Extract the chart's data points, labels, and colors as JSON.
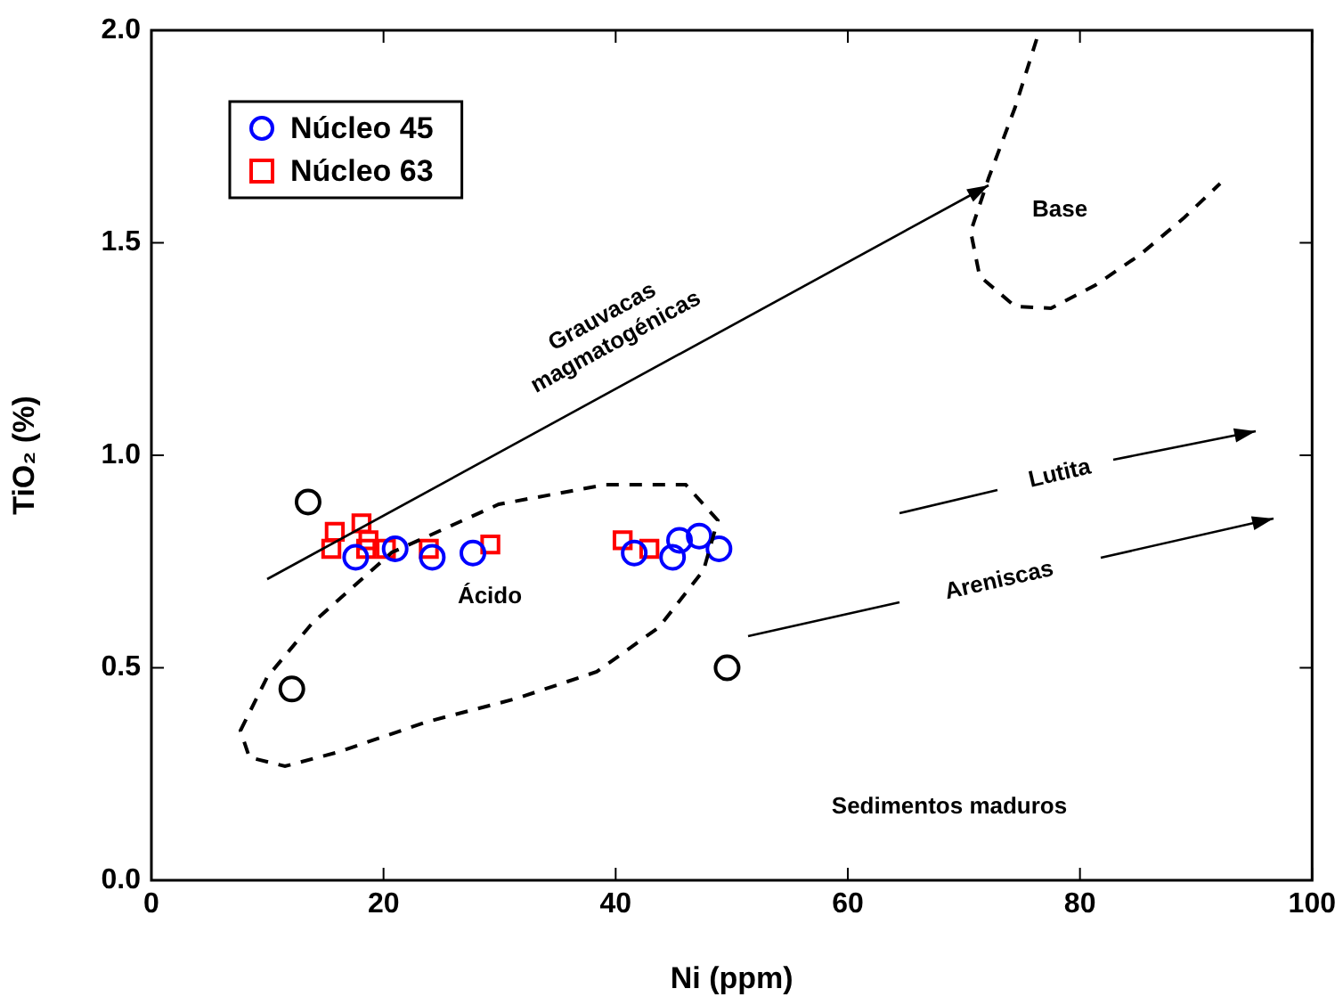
{
  "chart_data": {
    "type": "scatter",
    "xlabel": "Ni (ppm)",
    "ylabel": "TiO₂ (%)",
    "xlim": [
      0,
      100
    ],
    "xticks": [
      0,
      20,
      40,
      60,
      80,
      100
    ],
    "ylim": [
      0,
      2.0
    ],
    "yticks": [
      {
        "value": 0,
        "label": "0.0"
      },
      {
        "value": 0.5,
        "label": "0.5"
      },
      {
        "value": 1,
        "label": "1.0"
      },
      {
        "value": 1.5,
        "label": "1.5"
      },
      {
        "value": 2,
        "label": "2.0"
      }
    ],
    "grid": false,
    "legend": "top left",
    "series": [
      {
        "name": "Núcleo 45",
        "color": "#0000ff",
        "marker": "circle",
        "x": [
          17.6,
          21.0,
          24.2,
          27.7,
          41.6,
          44.9,
          45.5,
          47.2,
          48.9
        ],
        "values": [
          0.76,
          0.78,
          0.76,
          0.77,
          0.77,
          0.76,
          0.8,
          0.81,
          0.78
        ]
      },
      {
        "name": "Núcleo 63",
        "color": "#ff0000",
        "marker": "square",
        "x": [
          15.5,
          15.8,
          18.1,
          18.5,
          18.7,
          20.2,
          23.9,
          29.2,
          40.6,
          42.9
        ],
        "values": [
          0.78,
          0.82,
          0.84,
          0.78,
          0.8,
          0.78,
          0.78,
          0.79,
          0.8,
          0.78
        ]
      },
      {
        "color": "#000000",
        "marker": "circle",
        "x": [
          13.5,
          12.1,
          49.6
        ],
        "values": [
          0.89,
          0.45,
          0.5
        ]
      }
    ],
    "annotations": [
      "Grauvacas\nmagmatogénicas",
      "Lutita",
      "Areniscas",
      "Base",
      "Ácido",
      "Sedimentos maduros"
    ]
  }
}
